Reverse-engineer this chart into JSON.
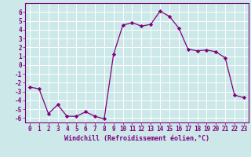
{
  "x": [
    0,
    1,
    2,
    3,
    4,
    5,
    6,
    7,
    8,
    9,
    10,
    11,
    12,
    13,
    14,
    15,
    16,
    17,
    18,
    19,
    20,
    21,
    22,
    23
  ],
  "y": [
    -2.5,
    -2.7,
    -5.5,
    -4.5,
    -5.8,
    -5.8,
    -5.3,
    -5.8,
    -6.1,
    1.2,
    4.5,
    4.8,
    4.4,
    4.6,
    6.1,
    5.5,
    4.2,
    1.8,
    1.6,
    1.7,
    1.5,
    0.8,
    -3.4,
    -3.7
  ],
  "line_color": "#800080",
  "marker": "D",
  "marker_size": 2.2,
  "bg_color": "#cce8e8",
  "grid_color": "#ffffff",
  "xlabel": "Windchill (Refroidissement éolien,°C)",
  "xlim": [
    -0.5,
    23.5
  ],
  "ylim": [
    -6.5,
    7.0
  ],
  "yticks": [
    -6,
    -5,
    -4,
    -3,
    -2,
    -1,
    0,
    1,
    2,
    3,
    4,
    5,
    6
  ],
  "xticks": [
    0,
    1,
    2,
    3,
    4,
    5,
    6,
    7,
    8,
    9,
    10,
    11,
    12,
    13,
    14,
    15,
    16,
    17,
    18,
    19,
    20,
    21,
    22,
    23
  ],
  "tick_fontsize": 5.5,
  "xlabel_fontsize": 6.0,
  "spine_color": "#800080",
  "linewidth": 0.9
}
